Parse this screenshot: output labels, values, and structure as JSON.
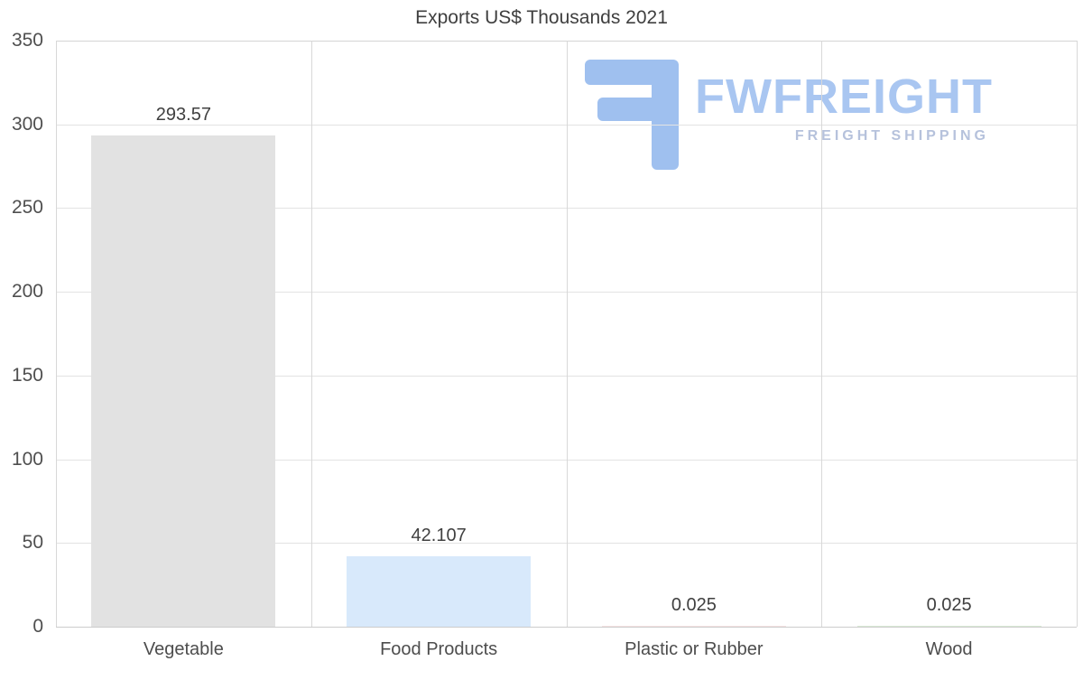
{
  "chart_data": {
    "type": "bar",
    "title": "Exports US$ Thousands 2021",
    "categories": [
      "Vegetable",
      "Food Products",
      "Plastic or Rubber",
      "Wood"
    ],
    "values": [
      293.57,
      42.107,
      0.025,
      0.025
    ],
    "value_labels": [
      "293.57",
      "42.107",
      "0.025",
      "0.025"
    ],
    "bar_colors": [
      "#e2e2e2",
      "#d8e9fb",
      "#f5e2e2",
      "#d9ead5"
    ],
    "xlabel": "",
    "ylabel": "",
    "ylim": [
      0,
      350
    ],
    "ytick_step": 50,
    "ytick_labels": [
      "0",
      "50",
      "100",
      "150",
      "200",
      "250",
      "300",
      "350"
    ],
    "grid": "on",
    "legend": "none"
  },
  "watermark": {
    "brand": "FWFREIGHT",
    "tagline": "FREIGHT SHIPPING",
    "brand_color": "#a9c6f1",
    "tagline_color": "#b6c2dc",
    "icon_color": "#9fc0ef",
    "icon": "fwfreight-logo-icon"
  }
}
